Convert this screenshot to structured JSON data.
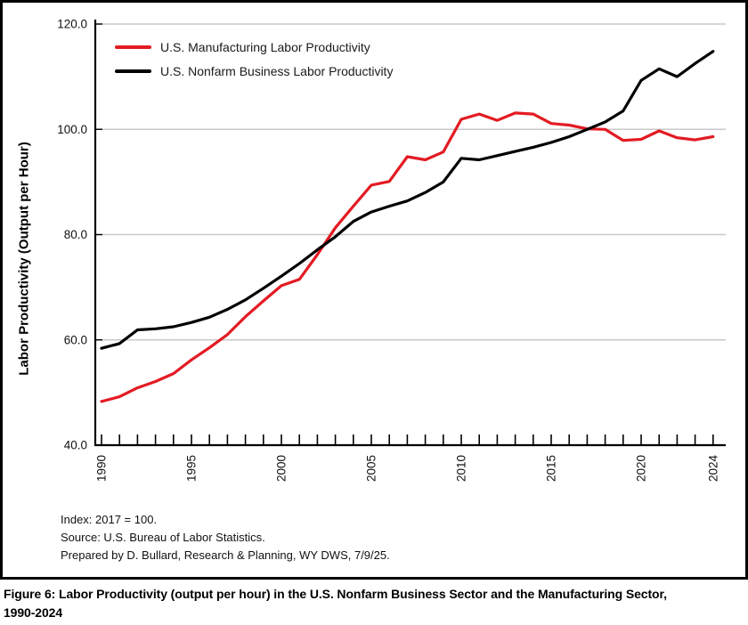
{
  "figure": {
    "caption_lines": [
      "Figure 6: Labor Productivity (output per hour) in the U.S. Nonfarm Business Sector and the Manufacturing Sector,",
      "1990-2024"
    ]
  },
  "notes": [
    "Index: 2017 = 100.",
    "Source: U.S. Bureau of Labor Statistics.",
    "Prepared by D. Bullard, Research & Planning, WY DWS, 7/9/25."
  ],
  "chart_data": {
    "type": "line",
    "title": "",
    "xlabel": "",
    "ylabel": "Labor Productivity (Output per Hour)",
    "ylim": [
      40,
      120
    ],
    "y_ticks": [
      {
        "value": 120,
        "label": "120.0"
      },
      {
        "value": 100,
        "label": "100.0"
      },
      {
        "value": 80,
        "label": "80.0"
      },
      {
        "value": 60,
        "label": "60.0"
      },
      {
        "value": 40,
        "label": "40.0"
      }
    ],
    "gridline_values": [
      120,
      100,
      80,
      60
    ],
    "grid_on": true,
    "legend_position": "top-left",
    "x": [
      1990,
      1991,
      1992,
      1993,
      1994,
      1995,
      1996,
      1997,
      1998,
      1999,
      2000,
      2001,
      2002,
      2003,
      2004,
      2005,
      2006,
      2007,
      2008,
      2009,
      2010,
      2011,
      2012,
      2013,
      2014,
      2015,
      2016,
      2017,
      2018,
      2019,
      2020,
      2021,
      2022,
      2023,
      2024
    ],
    "x_tick_labels": [
      {
        "year": 1990,
        "label": "1990"
      },
      {
        "year": 1995,
        "label": "1995"
      },
      {
        "year": 2000,
        "label": "2000"
      },
      {
        "year": 2005,
        "label": "2005"
      },
      {
        "year": 2010,
        "label": "2010"
      },
      {
        "year": 2015,
        "label": "2015"
      },
      {
        "year": 2020,
        "label": "2020"
      },
      {
        "year": 2024,
        "label": "2024"
      }
    ],
    "series": [
      {
        "name": "U.S. Manufacturing Labor Productivity",
        "color": "#e31b23",
        "values": [
          48.3,
          49.2,
          50.9,
          52.1,
          53.6,
          56.2,
          58.5,
          61.0,
          64.4,
          67.4,
          70.3,
          71.5,
          76.2,
          81.3,
          85.4,
          89.4,
          90.1,
          94.8,
          94.2,
          95.7,
          101.9,
          102.9,
          101.7,
          103.1,
          102.9,
          101.1,
          100.8,
          100.1,
          100.0,
          97.9,
          98.1,
          99.7,
          98.4,
          98.0,
          98.6
        ]
      },
      {
        "name": "U.S. Nonfarm Business Labor Productivity",
        "color": "#000000",
        "values": [
          58.4,
          59.3,
          61.9,
          62.1,
          62.5,
          63.3,
          64.3,
          65.8,
          67.6,
          69.8,
          72.1,
          74.5,
          77.1,
          79.6,
          82.5,
          84.3,
          85.4,
          86.4,
          88.0,
          90.0,
          94.5,
          94.2,
          95.0,
          95.8,
          96.6,
          97.5,
          98.6,
          100.0,
          101.4,
          103.5,
          109.3,
          111.5,
          110.0,
          112.5,
          114.8
        ]
      }
    ]
  },
  "colors": {
    "gridline": "#c9c9c9",
    "axis": "#000000",
    "frame_border": "#000000",
    "text": "#1a1a1a"
  }
}
